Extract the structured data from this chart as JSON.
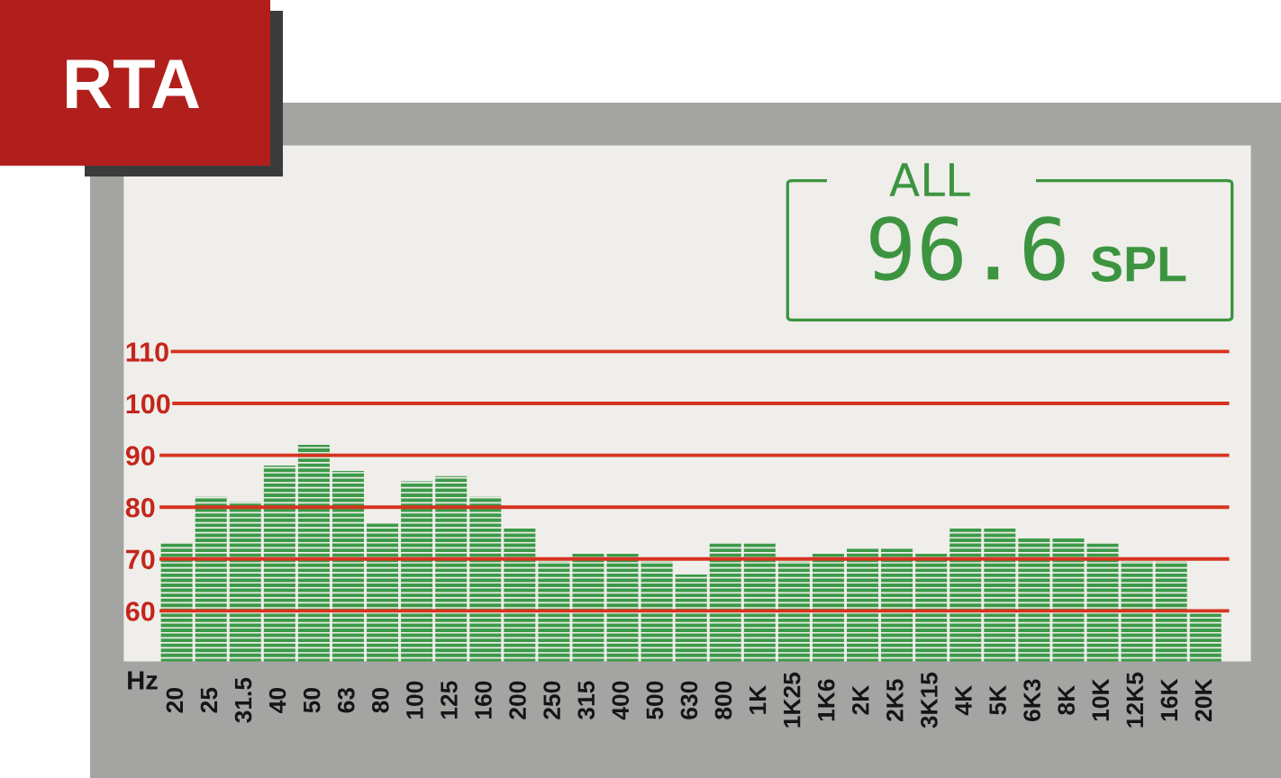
{
  "chart_data": {
    "type": "bar",
    "title": "RTA",
    "xlabel": "Hz",
    "categories": [
      "20",
      "25",
      "31.5",
      "40",
      "50",
      "63",
      "80",
      "100",
      "125",
      "160",
      "200",
      "250",
      "315",
      "400",
      "500",
      "630",
      "800",
      "1K",
      "1K25",
      "1K6",
      "2K",
      "2K5",
      "3K15",
      "4K",
      "5K",
      "6K3",
      "8K",
      "10K",
      "12K5",
      "16K",
      "20K"
    ],
    "values": [
      73,
      82,
      81,
      88,
      92,
      87,
      77,
      85,
      86,
      82,
      76,
      69.5,
      71,
      71,
      69.5,
      67,
      73,
      73,
      69.5,
      71,
      72,
      72,
      71,
      76,
      76,
      74,
      74,
      73,
      69.5,
      69.5,
      59.5
    ],
    "color": "#3c9a48",
    "ylim": [
      50,
      150
    ],
    "yticks": [
      60,
      70,
      80,
      90,
      100,
      110
    ],
    "grid": "y",
    "annotations": [
      "ALL",
      "96.6",
      "SPL"
    ]
  }
}
